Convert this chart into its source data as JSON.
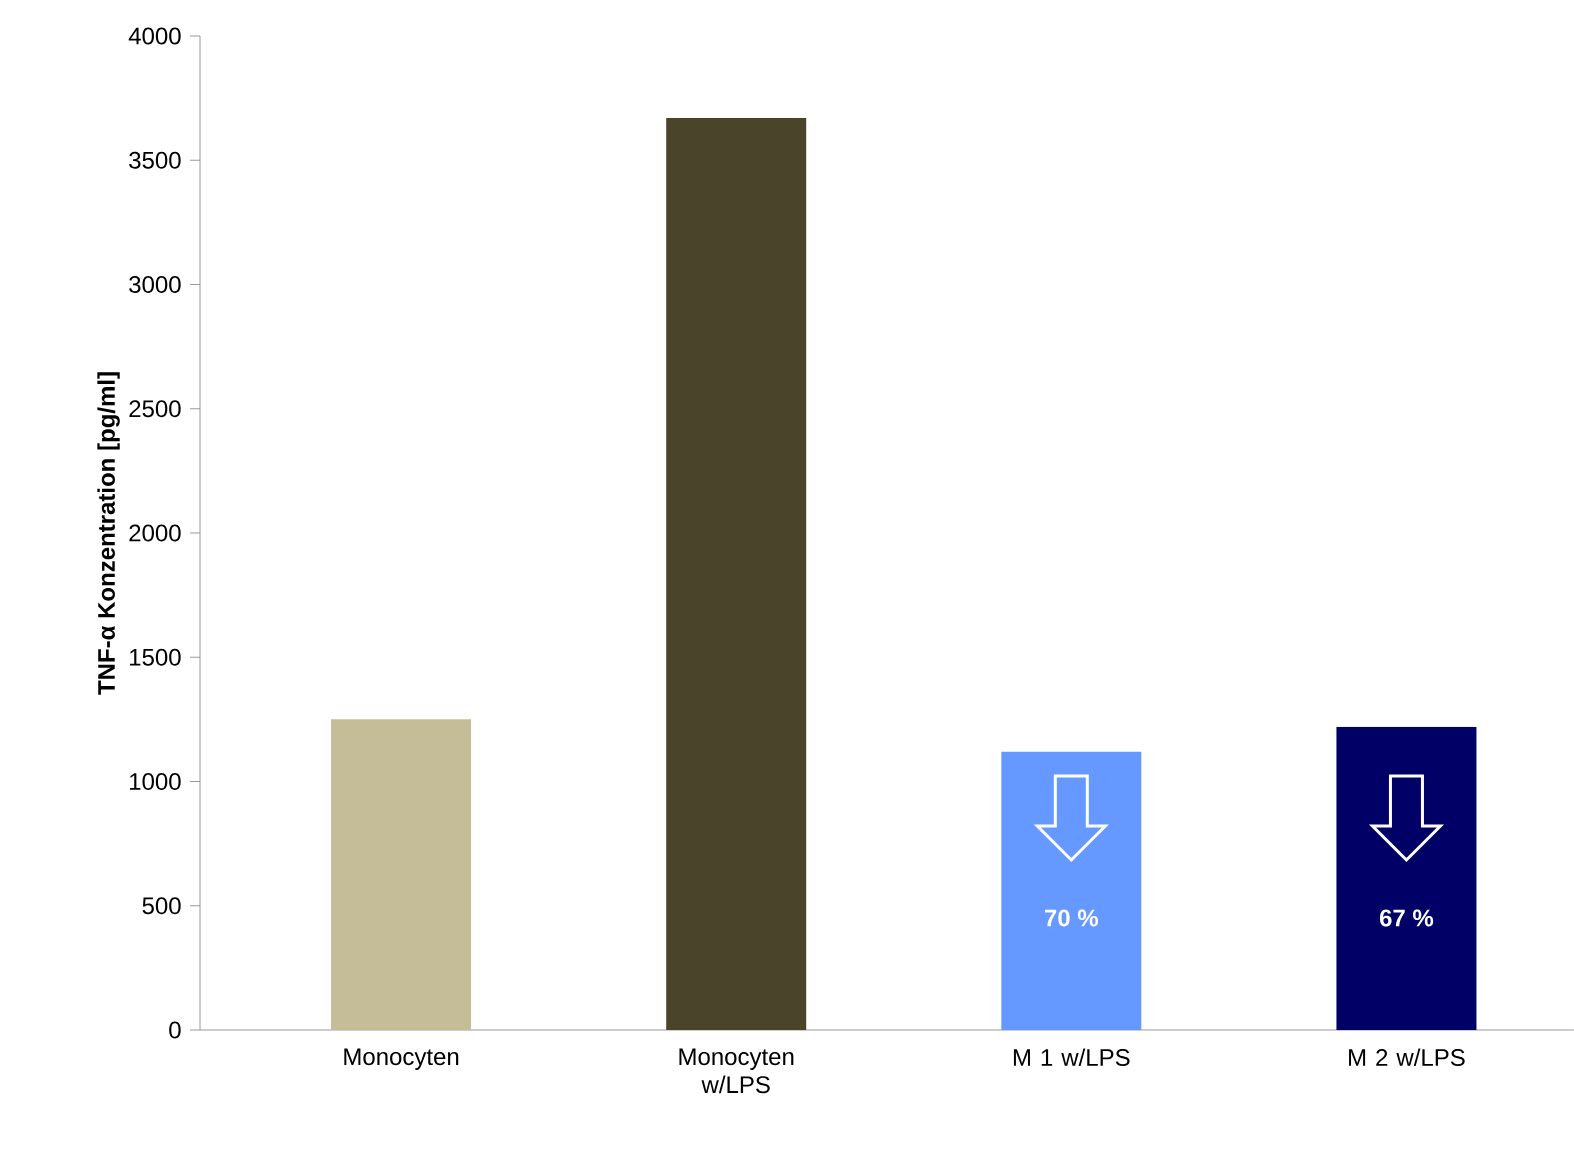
{
  "chart_data": {
    "type": "bar",
    "ylabel": "TNF-α Konzentration [pg/ml]",
    "categories": [
      "Monocyten",
      "Monocyten w/LPS",
      "M 1 w/LPS",
      "M 2 w/LPS"
    ],
    "values": [
      1250,
      3670,
      1120,
      1220
    ],
    "colors": [
      "#c4bd97",
      "#4a452a",
      "#6699ff",
      "#000066"
    ],
    "ylim": [
      0,
      4000
    ],
    "yticks": [
      0,
      500,
      1000,
      1500,
      2000,
      2500,
      3000,
      3500,
      4000
    ],
    "annotations": [
      "70 %",
      "67 %"
    ]
  }
}
